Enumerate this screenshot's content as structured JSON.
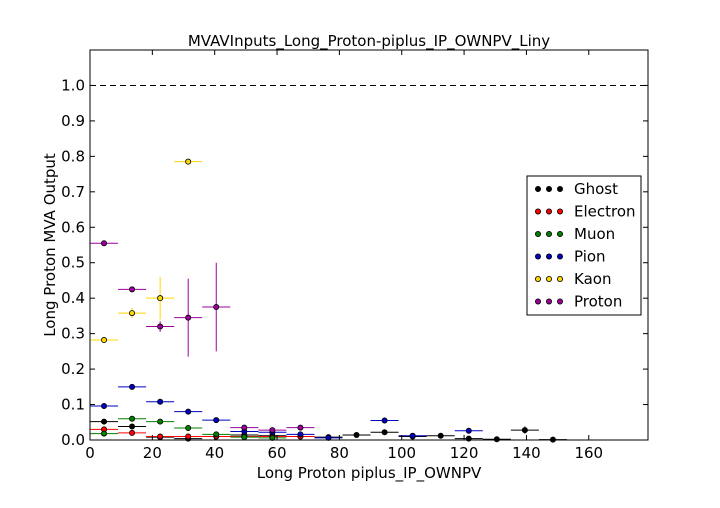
{
  "chart_data": {
    "type": "scatter",
    "title": "MVAVInputs_Long_Proton-piplus_IP_OWNPV_Liny",
    "xlabel": "Long Proton piplus_IP_OWNPV",
    "ylabel": "Long Proton MVA Output",
    "xlim": [
      0,
      179
    ],
    "ylim": [
      0,
      1.1
    ],
    "x_ticks": [
      "0",
      "20",
      "40",
      "60",
      "80",
      "100",
      "120",
      "140",
      "160"
    ],
    "y_ticks": [
      "0.0",
      "0.1",
      "0.2",
      "0.3",
      "0.4",
      "0.5",
      "0.6",
      "0.7",
      "0.8",
      "0.9",
      "1.0"
    ],
    "reference_line": 1.0,
    "legend_position": "right",
    "series": [
      {
        "name": "Ghost",
        "color": "#000000",
        "xerr": 4.5,
        "points": [
          {
            "x": 4.5,
            "y": 0.052,
            "yerr": 0.003
          },
          {
            "x": 13.5,
            "y": 0.038,
            "yerr": 0.003
          },
          {
            "x": 22.5,
            "y": 0.008,
            "yerr": 0.002
          },
          {
            "x": 31.5,
            "y": 0.004,
            "yerr": 0.002
          },
          {
            "x": 40.5,
            "y": 0.01,
            "yerr": 0.002
          },
          {
            "x": 49.5,
            "y": 0.014,
            "yerr": 0.002
          },
          {
            "x": 58.5,
            "y": 0.012,
            "yerr": 0.002
          },
          {
            "x": 67.5,
            "y": 0.01,
            "yerr": 0.002
          },
          {
            "x": 76.5,
            "y": 0.008,
            "yerr": 0.002
          },
          {
            "x": 85.5,
            "y": 0.014,
            "yerr": 0.002
          },
          {
            "x": 94.5,
            "y": 0.022,
            "yerr": 0.003
          },
          {
            "x": 103.5,
            "y": 0.01,
            "yerr": 0.002
          },
          {
            "x": 112.5,
            "y": 0.012,
            "yerr": 0.002
          },
          {
            "x": 121.5,
            "y": 0.004,
            "yerr": 0.002
          },
          {
            "x": 130.5,
            "y": 0.002,
            "yerr": 0.002
          },
          {
            "x": 139.5,
            "y": 0.028,
            "yerr": 0.01
          },
          {
            "x": 148.5,
            "y": 0.001,
            "yerr": 0.001
          }
        ]
      },
      {
        "name": "Electron",
        "color": "#ff0000",
        "xerr": 4.5,
        "points": [
          {
            "x": 4.5,
            "y": 0.03,
            "yerr": 0.003
          },
          {
            "x": 13.5,
            "y": 0.02,
            "yerr": 0.003
          },
          {
            "x": 22.5,
            "y": 0.01,
            "yerr": 0.002
          },
          {
            "x": 31.5,
            "y": 0.01,
            "yerr": 0.002
          },
          {
            "x": 40.5,
            "y": 0.01,
            "yerr": 0.002
          },
          {
            "x": 49.5,
            "y": 0.01,
            "yerr": 0.002
          },
          {
            "x": 58.5,
            "y": 0.01,
            "yerr": 0.002
          },
          {
            "x": 67.5,
            "y": 0.01,
            "yerr": 0.002
          }
        ]
      },
      {
        "name": "Muon",
        "color": "#008000",
        "xerr": 4.5,
        "points": [
          {
            "x": 4.5,
            "y": 0.018,
            "yerr": 0.003
          },
          {
            "x": 13.5,
            "y": 0.06,
            "yerr": 0.004
          },
          {
            "x": 22.5,
            "y": 0.052,
            "yerr": 0.004
          },
          {
            "x": 31.5,
            "y": 0.034,
            "yerr": 0.003
          },
          {
            "x": 40.5,
            "y": 0.016,
            "yerr": 0.003
          },
          {
            "x": 49.5,
            "y": 0.008,
            "yerr": 0.002
          },
          {
            "x": 58.5,
            "y": 0.006,
            "yerr": 0.002
          }
        ]
      },
      {
        "name": "Pion",
        "color": "#0000c0",
        "xerr": 4.5,
        "points": [
          {
            "x": 4.5,
            "y": 0.096,
            "yerr": 0.003
          },
          {
            "x": 13.5,
            "y": 0.15,
            "yerr": 0.004
          },
          {
            "x": 22.5,
            "y": 0.108,
            "yerr": 0.004
          },
          {
            "x": 31.5,
            "y": 0.08,
            "yerr": 0.004
          },
          {
            "x": 40.5,
            "y": 0.056,
            "yerr": 0.004
          },
          {
            "x": 49.5,
            "y": 0.024,
            "yerr": 0.003
          },
          {
            "x": 58.5,
            "y": 0.022,
            "yerr": 0.003
          },
          {
            "x": 67.5,
            "y": 0.016,
            "yerr": 0.003
          },
          {
            "x": 76.5,
            "y": 0.006,
            "yerr": 0.002
          },
          {
            "x": 94.5,
            "y": 0.055,
            "yerr": 0.008
          },
          {
            "x": 103.5,
            "y": 0.012,
            "yerr": 0.003
          },
          {
            "x": 121.5,
            "y": 0.026,
            "yerr": 0.006
          }
        ]
      },
      {
        "name": "Kaon",
        "color": "#ffd700",
        "xerr": 4.5,
        "points": [
          {
            "x": 4.5,
            "y": 0.282,
            "yerr": 0.006
          },
          {
            "x": 13.5,
            "y": 0.358,
            "yerr": 0.015
          },
          {
            "x": 22.5,
            "y": 0.4,
            "yerr": 0.06
          },
          {
            "x": 31.5,
            "y": 0.785,
            "yerr": 0.006
          }
        ]
      },
      {
        "name": "Proton",
        "color": "#9b009b",
        "xerr": 4.5,
        "points": [
          {
            "x": 4.5,
            "y": 0.555,
            "yerr": 0.004
          },
          {
            "x": 13.5,
            "y": 0.425,
            "yerr": 0.006
          },
          {
            "x": 22.5,
            "y": 0.32,
            "yerr": 0.015
          },
          {
            "x": 31.5,
            "y": 0.345,
            "yerr": 0.11
          },
          {
            "x": 40.5,
            "y": 0.375,
            "yerr": 0.125
          },
          {
            "x": 49.5,
            "y": 0.035,
            "yerr": 0.004
          },
          {
            "x": 58.5,
            "y": 0.028,
            "yerr": 0.004
          },
          {
            "x": 67.5,
            "y": 0.035,
            "yerr": 0.004
          }
        ]
      }
    ]
  }
}
